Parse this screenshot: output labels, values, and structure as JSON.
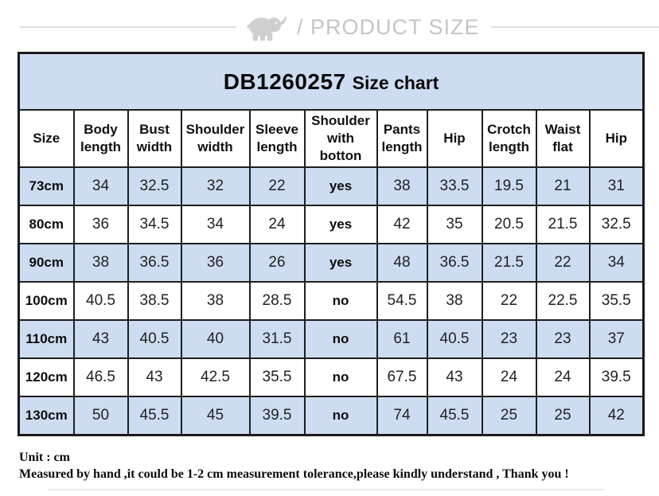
{
  "header": {
    "icon": "elephant-icon",
    "breadcrumb": "/ PRODUCT SIZE"
  },
  "chart_data": {
    "type": "table",
    "title_code": "DB1260257",
    "title_label": "Size chart",
    "columns": [
      "Size",
      "Body length",
      "Bust width",
      "Shoulder width",
      "Sleeve length",
      "Shoulder with botton",
      "Pants length",
      "Hip",
      "Crotch length",
      "Waist flat",
      "Hip"
    ],
    "rows": [
      [
        "73cm",
        34,
        32.5,
        32,
        22,
        "yes",
        38,
        33.5,
        19.5,
        21,
        31
      ],
      [
        "80cm",
        36,
        34.5,
        34,
        24,
        "yes",
        42,
        35,
        20.5,
        21.5,
        32.5
      ],
      [
        "90cm",
        38,
        36.5,
        36,
        26,
        "yes",
        48,
        36.5,
        21.5,
        22,
        34
      ],
      [
        "100cm",
        40.5,
        38.5,
        38,
        28.5,
        "no",
        54.5,
        38,
        22,
        22.5,
        35.5
      ],
      [
        "110cm",
        43,
        40.5,
        40,
        31.5,
        "no",
        61,
        40.5,
        23,
        23,
        37
      ],
      [
        "120cm",
        46.5,
        43,
        42.5,
        35.5,
        "no",
        67.5,
        43,
        24,
        24,
        39.5
      ],
      [
        "130cm",
        50,
        45.5,
        45,
        39.5,
        "no",
        74,
        45.5,
        25,
        25,
        42
      ]
    ],
    "layout": {
      "highlight_rows": "alternating starting with first data row",
      "grid": true
    }
  },
  "footer": {
    "unit": "Unit : cm",
    "note": "Measured by hand ,it could be 1-2 cm measurement tolerance,please kindly understand , Thank you !"
  },
  "colors": {
    "row_highlight": "#cddcf1",
    "table_border": "#1f1f1f",
    "breadcrumb_gray": "#c5c5c5",
    "divider_gray": "#dedede"
  }
}
